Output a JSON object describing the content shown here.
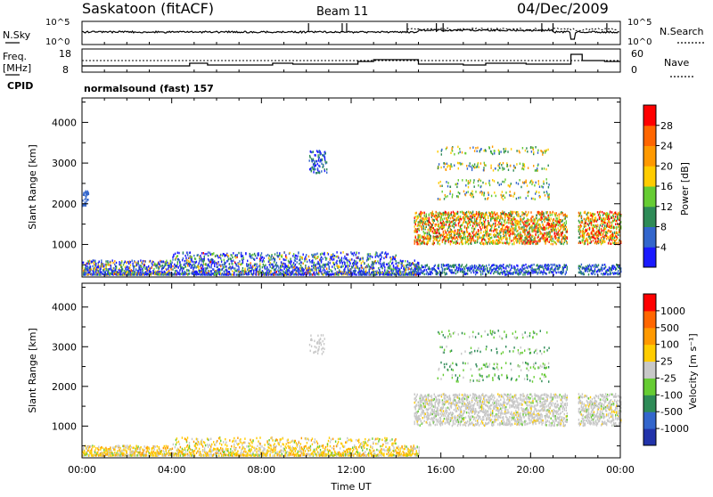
{
  "header": {
    "station": "Saskatoon (fitACF)",
    "beam": "Beam 11",
    "date": "04/Dec/2009"
  },
  "nsky_panel": {
    "left_label": "N.Sky",
    "left_ticks": [
      "10^5",
      "10^0"
    ],
    "right_label": "N.Search",
    "right_ticks": [
      "10^5",
      "10^0"
    ]
  },
  "freq_panel": {
    "left_label_top": "Freq.",
    "left_label_bottom": "[MHz]",
    "left_ticks": [
      "18",
      "8"
    ],
    "right_label": "Nave",
    "right_ticks": [
      "60",
      "0"
    ],
    "cpid_label": "CPID",
    "cpid_text": "normalsound (fast) 157"
  },
  "chart_data": [
    {
      "type": "heatmap",
      "name": "power",
      "ylabel": "Slant Range [km]",
      "yticks": [
        "1000",
        "2000",
        "3000",
        "4000"
      ],
      "ylim": [
        200,
        4600
      ],
      "xlim": [
        0,
        24
      ],
      "colorbar_label": "Power [dB]",
      "colorbar_ticks": [
        "4",
        "8",
        "12",
        "16",
        "20",
        "24",
        "28"
      ],
      "colors": [
        "#1a1aff",
        "#3366cc",
        "#2e8b57",
        "#66cc33",
        "#ffcc00",
        "#ff9900",
        "#ff6600",
        "#ff0000"
      ]
    },
    {
      "type": "heatmap",
      "name": "velocity",
      "ylabel": "Slant Range [km]",
      "yticks": [
        "1000",
        "2000",
        "3000",
        "4000"
      ],
      "ylim": [
        200,
        4600
      ],
      "xlim": [
        0,
        24
      ],
      "colorbar_label": "Velocity [m s⁻¹]",
      "colorbar_ticks": [
        "1000",
        "500",
        "100",
        "25",
        "-25",
        "-100",
        "-500",
        "-1000"
      ],
      "colors": [
        "#2233aa",
        "#3366cc",
        "#2e8b57",
        "#66cc33",
        "#c8c8c8",
        "#ffcc00",
        "#ff9900",
        "#ff6600",
        "#ff0000"
      ]
    }
  ],
  "x_axis": {
    "ticks": [
      "00:00",
      "04:00",
      "08:00",
      "12:00",
      "16:00",
      "20:00",
      "00:00"
    ],
    "label": "Time UT"
  }
}
